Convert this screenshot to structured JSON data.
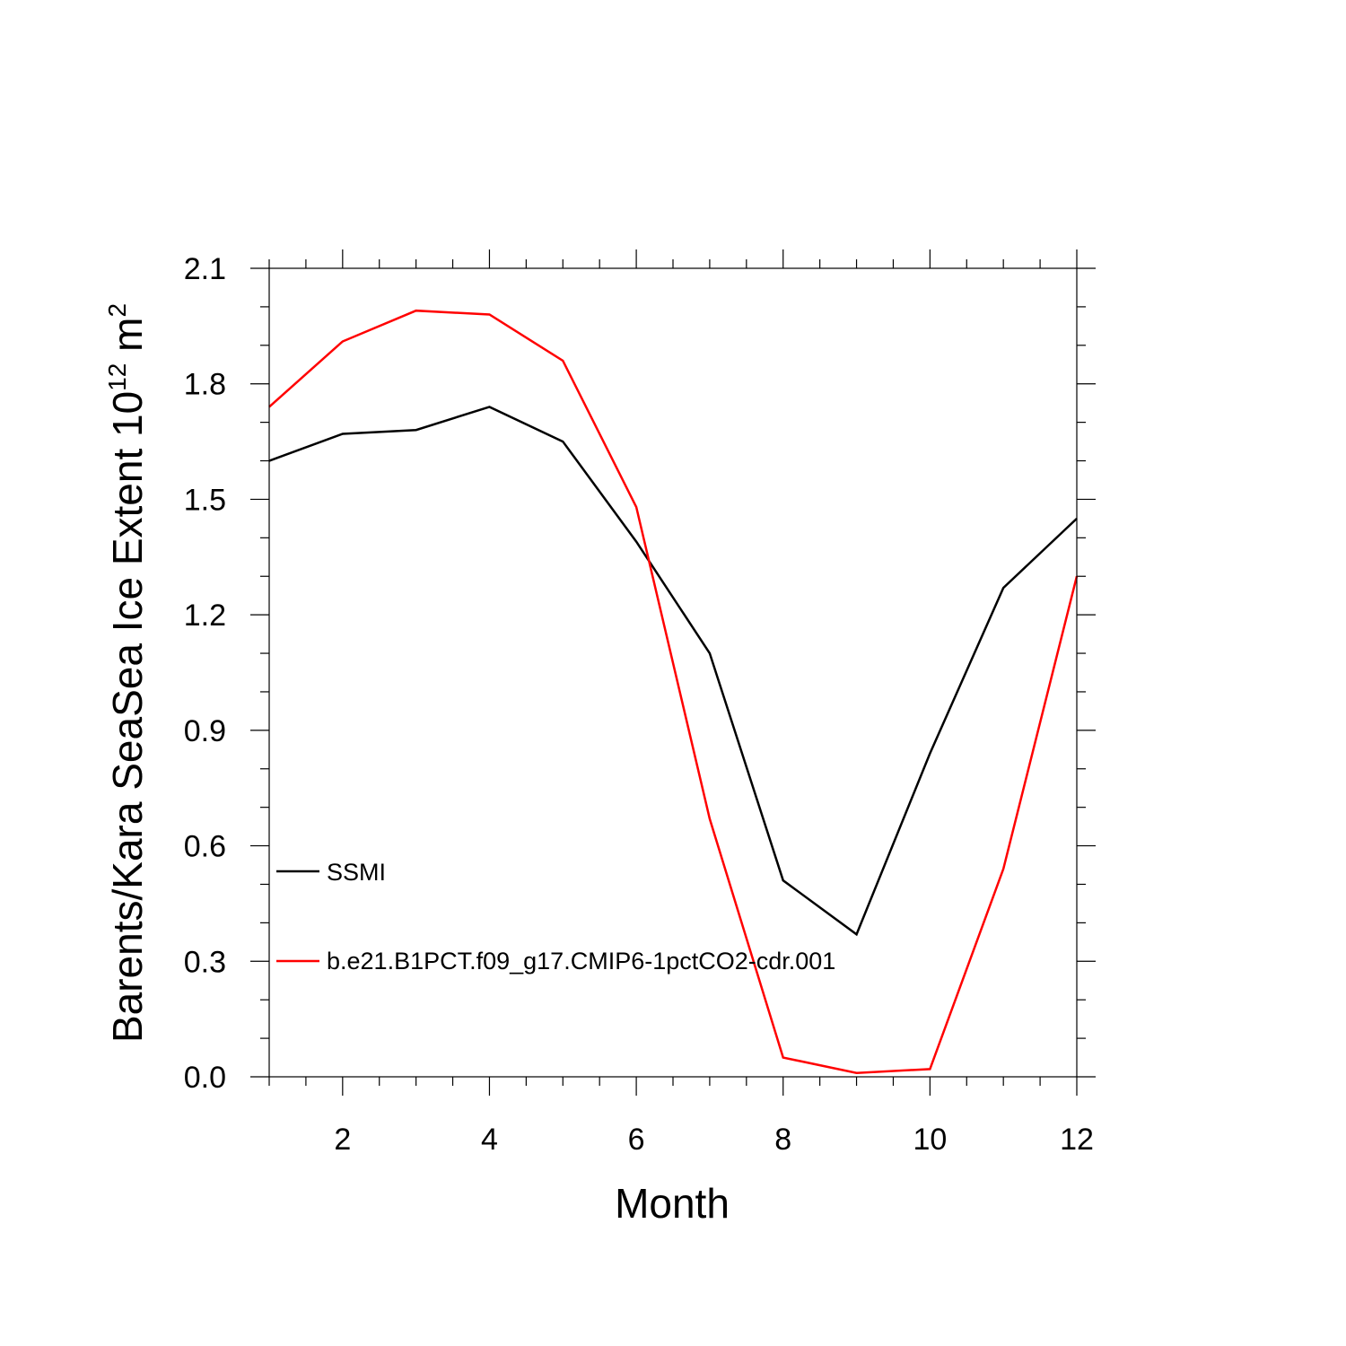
{
  "chart_data": {
    "type": "line",
    "xlabel": "Month",
    "ylabel": "Barents/Kara SeaSea Ice Extent 10",
    "ylabel_exponent": "12",
    "ylabel_unit": " m",
    "ylabel_unit_exponent": "2",
    "xlim": [
      1,
      12
    ],
    "ylim": [
      0.0,
      2.1
    ],
    "x_ticks": [
      2,
      4,
      6,
      8,
      10,
      12
    ],
    "x_tick_labels": [
      "2",
      "4",
      "6",
      "8",
      "10",
      "12"
    ],
    "y_ticks": [
      0.0,
      0.3,
      0.6,
      0.9,
      1.2,
      1.5,
      1.8,
      2.1
    ],
    "y_tick_labels": [
      "0.0",
      "0.3",
      "0.6",
      "0.9",
      "1.2",
      "1.5",
      "1.8",
      "2.1"
    ],
    "grid": false,
    "legend_position": "left",
    "x": [
      1,
      2,
      3,
      4,
      5,
      6,
      7,
      8,
      9,
      10,
      11,
      12
    ],
    "series": [
      {
        "name": "SSMI",
        "color": "#000000",
        "values": [
          1.6,
          1.67,
          1.68,
          1.74,
          1.65,
          1.39,
          1.1,
          0.51,
          0.37,
          0.84,
          1.27,
          1.45
        ]
      },
      {
        "name": "b.e21.B1PCT.f09_g17.CMIP6-1pctCO2-cdr.001",
        "color": "#ff0000",
        "values": [
          1.74,
          1.91,
          1.99,
          1.98,
          1.86,
          1.48,
          0.67,
          0.05,
          0.01,
          0.02,
          0.54,
          1.3
        ]
      }
    ]
  }
}
